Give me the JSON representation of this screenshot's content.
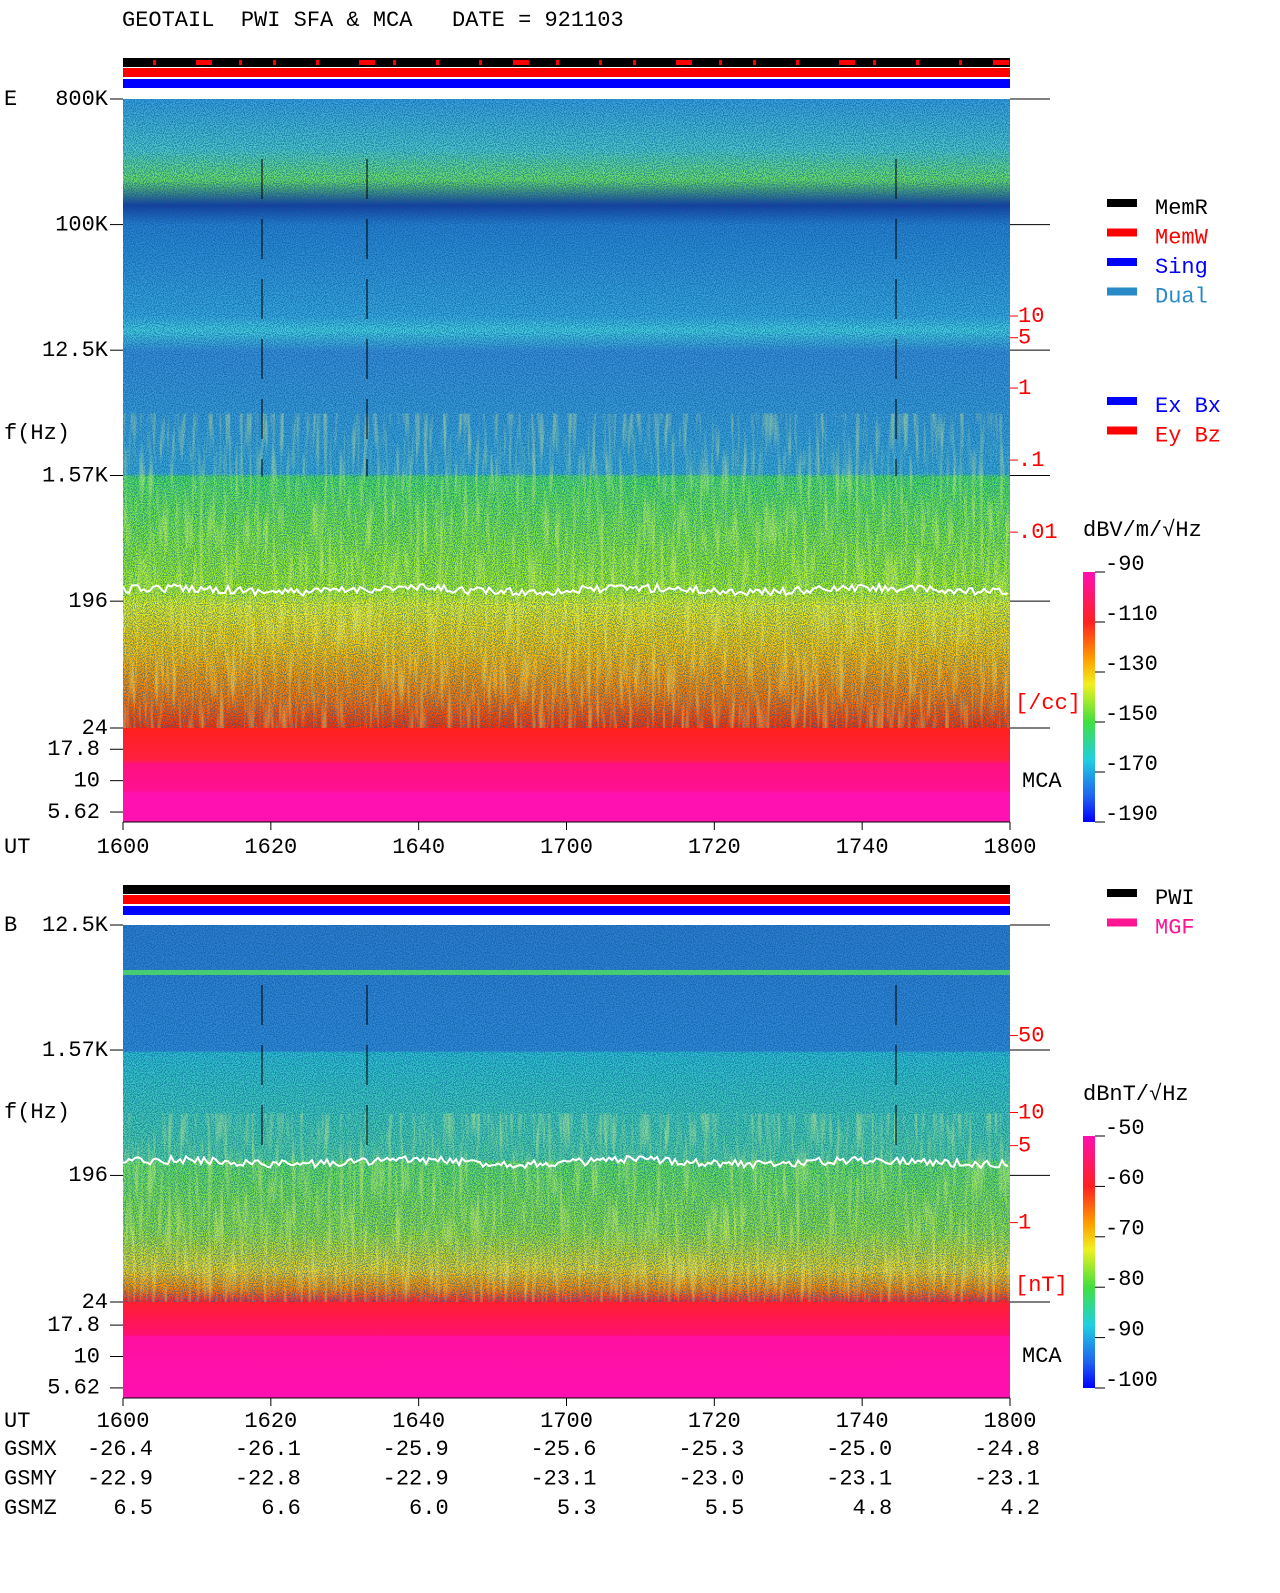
{
  "title": "GEOTAIL  PWI SFA & MCA   DATE = 921103",
  "chart_data": [
    {
      "type": "spectrogram",
      "panel_label": "E",
      "y_label": "f(Hz)",
      "x_label": "UT",
      "x_categories": [
        "1600",
        "1620",
        "1640",
        "1700",
        "1720",
        "1740",
        "1800"
      ],
      "log_y": true,
      "ylim": [
        24,
        800000
      ],
      "yticks": [
        {
          "value": 800000,
          "label": "800K"
        },
        {
          "value": 100000,
          "label": "100K"
        },
        {
          "value": 12500,
          "label": "12.5K"
        },
        {
          "value": 1570,
          "label": "1.57K"
        },
        196,
        24
      ],
      "mca_label": "MCA",
      "mca_ylim": [
        4.68,
        26.3
      ],
      "mca_ticks": [
        17.8,
        10,
        5.62
      ],
      "y2lim": [
        1.91e-05,
        10300
      ],
      "y2ticks": [
        10,
        5,
        1,
        {
          "value": 0.1,
          "label": ".1"
        },
        {
          "value": 0.01,
          "label": ".01"
        }
      ],
      "y2_label": "[/cc]",
      "colorbar": {
        "label": "dBV/m/√Hz",
        "clim": [
          -190,
          -90
        ],
        "ticks": [
          -90,
          -110,
          -130,
          -150,
          -170,
          -190
        ]
      },
      "legend": [
        [
          {
            "name": "MemR",
            "color": "#000000"
          },
          {
            "name": "MemW",
            "color": "#ff0000"
          },
          {
            "name": "Sing",
            "color": "#0000ff"
          },
          {
            "name": "Dual",
            "color": "#2a8ac8"
          }
        ],
        [
          {
            "name": "Ex Bx",
            "color": "#0000ff"
          },
          {
            "name": "Ey Bz",
            "color": "#ff0000"
          }
        ]
      ]
    },
    {
      "type": "spectrogram",
      "panel_label": "B",
      "y_label": "f(Hz)",
      "x_label": "UT",
      "x_categories": [
        "1600",
        "1620",
        "1640",
        "1700",
        "1720",
        "1740",
        "1800"
      ],
      "log_y": true,
      "ylim": [
        24,
        12500
      ],
      "yticks": [
        {
          "value": 12500,
          "label": "12.5K"
        },
        {
          "value": 1570,
          "label": "1.57K"
        },
        196,
        24
      ],
      "mca_label": "MCA",
      "mca_ylim": [
        4.67,
        27.2
      ],
      "mca_ticks": [
        17.8,
        10,
        5.62
      ],
      "y2lim": [
        0.19,
        505
      ],
      "y2ticks": [
        50,
        10,
        5,
        1
      ],
      "y2_label": "[nT]",
      "colorbar": {
        "label": "dBnT/√Hz",
        "clim": [
          -100,
          -50
        ],
        "ticks": [
          -50,
          -60,
          -70,
          -80,
          -90,
          -100
        ]
      },
      "legend": [
        [
          {
            "name": "PWI",
            "color": "#000000"
          },
          {
            "name": "MGF",
            "color": "#ff1493"
          }
        ]
      ]
    }
  ],
  "orbit": {
    "rows": [
      {
        "label": "GSMX",
        "values": [
          "-26.4",
          "-26.1",
          "-25.9",
          "-25.6",
          "-25.3",
          "-25.0",
          "-24.8"
        ]
      },
      {
        "label": "GSMY",
        "values": [
          "-22.9",
          "-22.8",
          "-22.9",
          "-23.1",
          "-23.0",
          "-23.1",
          "-23.1"
        ]
      },
      {
        "label": "GSMZ",
        "values": [
          "6.5",
          "6.6",
          "6.0",
          "5.3",
          "5.5",
          "4.8",
          "4.2"
        ]
      }
    ]
  }
}
